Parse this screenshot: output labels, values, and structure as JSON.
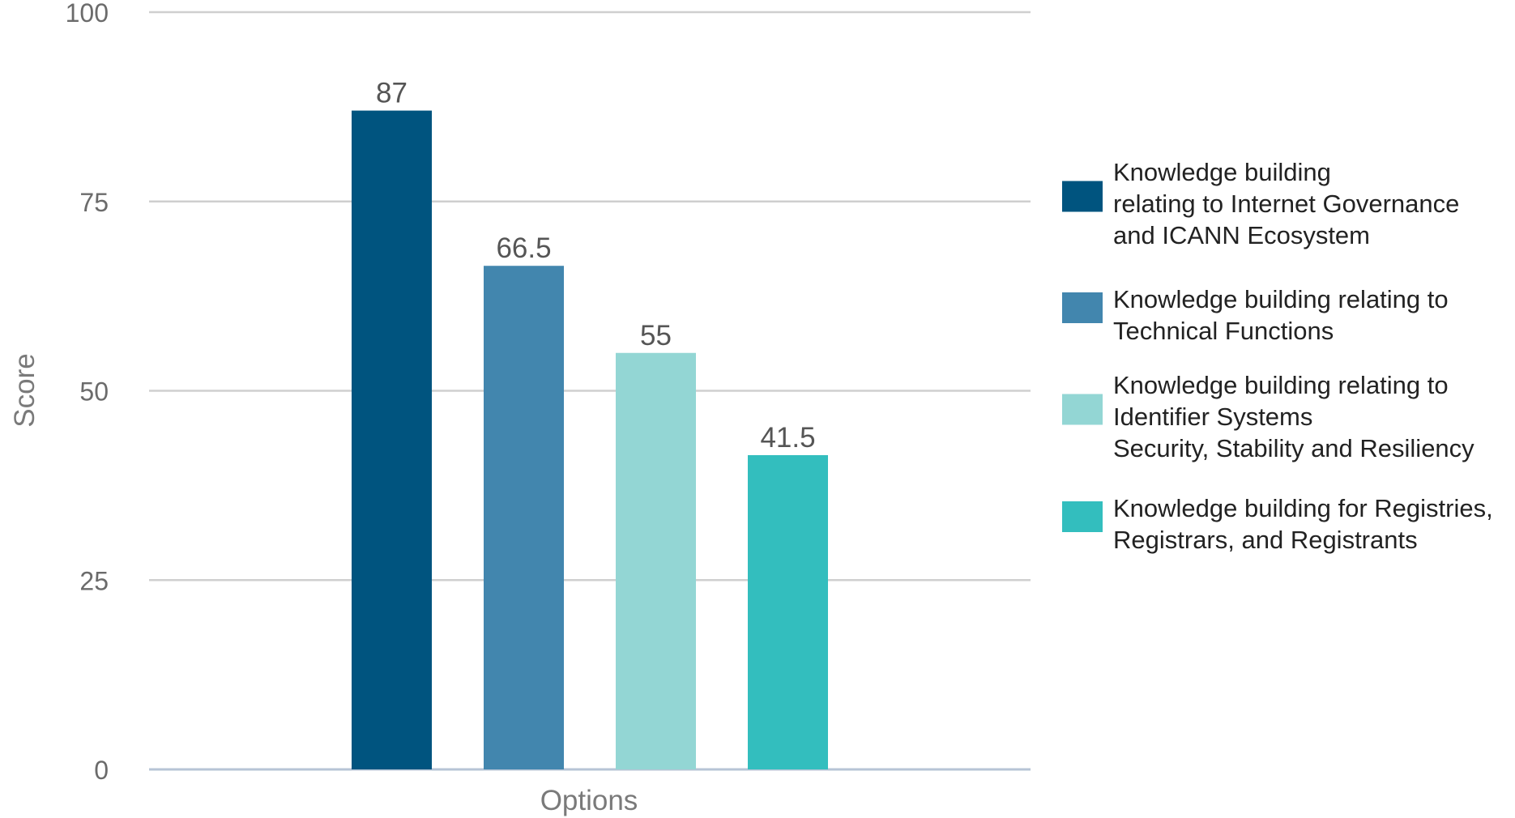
{
  "chart_data": {
    "type": "bar",
    "title": "",
    "xlabel": "Options",
    "ylabel": "Score",
    "ylim": [
      0,
      100
    ],
    "yticks": [
      0,
      25,
      50,
      75,
      100
    ],
    "grid": true,
    "legend_position": "right",
    "categories": [
      "Options"
    ],
    "series": [
      {
        "name": "Knowledge building relating to Internet Governance and ICANN Ecosystem",
        "legend_lines": [
          "Knowledge building",
          "relating to Internet Governance",
          "and ICANN Ecosystem"
        ],
        "value": 87,
        "label": "87",
        "color": "#00547F"
      },
      {
        "name": "Knowledge building relating to Technical Functions",
        "legend_lines": [
          "Knowledge building relating to",
          "Technical Functions"
        ],
        "value": 66.5,
        "label": "66.5",
        "color": "#4286AE"
      },
      {
        "name": "Knowledge building relating to Identifier Systems Security, Stability and Resiliency",
        "legend_lines": [
          "Knowledge building relating to",
          "Identifier Systems",
          "Security, Stability and Resiliency"
        ],
        "value": 55,
        "label": "55",
        "color": "#93D6D4"
      },
      {
        "name": "Knowledge building for Registries, Registrars, and Registrants",
        "legend_lines": [
          "Knowledge building for Registries,",
          "Registrars, and Registrants"
        ],
        "value": 41.5,
        "label": "41.5",
        "color": "#33BEBE"
      }
    ]
  }
}
